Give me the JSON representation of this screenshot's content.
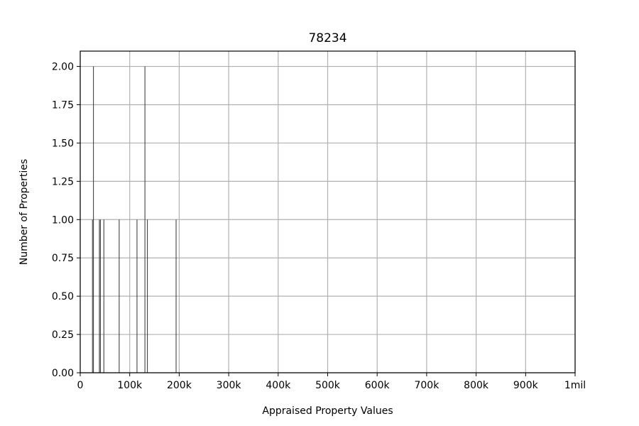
{
  "chart_data": {
    "type": "bar",
    "title": "78234",
    "xlabel": "Appraised Property Values",
    "ylabel": "Number of Properties",
    "xlim": [
      0,
      1000000
    ],
    "ylim": [
      0,
      2.1
    ],
    "grid": true,
    "x_ticks": [
      {
        "value": 0,
        "label": "0"
      },
      {
        "value": 100000,
        "label": "100k"
      },
      {
        "value": 200000,
        "label": "200k"
      },
      {
        "value": 300000,
        "label": "300k"
      },
      {
        "value": 400000,
        "label": "400k"
      },
      {
        "value": 500000,
        "label": "500k"
      },
      {
        "value": 600000,
        "label": "600k"
      },
      {
        "value": 700000,
        "label": "700k"
      },
      {
        "value": 800000,
        "label": "800k"
      },
      {
        "value": 900000,
        "label": "900k"
      },
      {
        "value": 1000000,
        "label": "1mil"
      }
    ],
    "y_ticks": [
      {
        "value": 0,
        "label": "0.00"
      },
      {
        "value": 0.25,
        "label": "0.25"
      },
      {
        "value": 0.5,
        "label": "0.50"
      },
      {
        "value": 0.75,
        "label": "0.75"
      },
      {
        "value": 1.0,
        "label": "1.00"
      },
      {
        "value": 1.25,
        "label": "1.25"
      },
      {
        "value": 1.5,
        "label": "1.50"
      },
      {
        "value": 1.75,
        "label": "1.75"
      },
      {
        "value": 2.0,
        "label": "2.00"
      }
    ],
    "bin_width": 1000,
    "bars": [
      {
        "x": 24000,
        "value": 1
      },
      {
        "x": 26000,
        "value": 2
      },
      {
        "x": 38000,
        "value": 1
      },
      {
        "x": 40000,
        "value": 1
      },
      {
        "x": 47000,
        "value": 1
      },
      {
        "x": 78000,
        "value": 1
      },
      {
        "x": 114000,
        "value": 1
      },
      {
        "x": 130000,
        "value": 2
      },
      {
        "x": 135000,
        "value": 1
      },
      {
        "x": 193000,
        "value": 1
      }
    ],
    "bar_color": "#333333",
    "grid_color": "#b0b0b0"
  }
}
